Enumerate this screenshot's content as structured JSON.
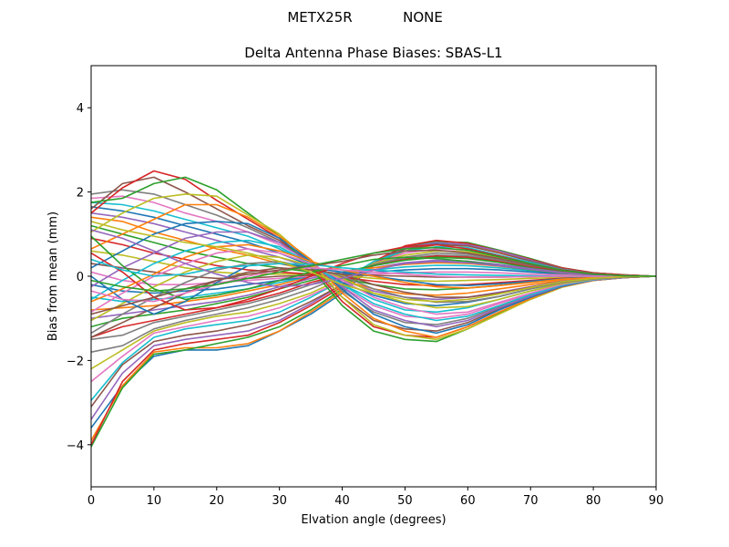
{
  "suptitle": {
    "antenna": "METX25R",
    "radome": "NONE"
  },
  "chart_data": {
    "type": "line",
    "title": "Delta Antenna Phase Biases: SBAS-L1",
    "xlabel": "Elvation angle (degrees)",
    "ylabel": "Bias from mean (mm)",
    "xlim": [
      0,
      90
    ],
    "ylim": [
      -5,
      5
    ],
    "xticks": [
      0,
      10,
      20,
      30,
      40,
      50,
      60,
      70,
      80,
      90
    ],
    "yticks": [
      -4,
      -2,
      0,
      2,
      4
    ],
    "grid": false,
    "x": [
      0,
      5,
      10,
      15,
      20,
      25,
      30,
      35,
      40,
      45,
      50,
      55,
      60,
      65,
      70,
      75,
      80,
      85,
      90
    ],
    "series_colors": [
      "#1f77b4",
      "#ff7f0e",
      "#2ca02c",
      "#d62728",
      "#9467bd",
      "#8c564b",
      "#e377c2",
      "#7f7f7f",
      "#bcbd22",
      "#17becf"
    ],
    "series": [
      {
        "color_index": 0,
        "values": [
          -3.6,
          -2.6,
          -1.9,
          -1.75,
          -1.75,
          -1.65,
          -1.3,
          -0.9,
          -0.4,
          0.25,
          0.65,
          0.78,
          0.75,
          0.6,
          0.4,
          0.2,
          0.08,
          0.03,
          0
        ]
      },
      {
        "color_index": 1,
        "values": [
          -3.9,
          -2.6,
          -1.8,
          -1.7,
          -1.7,
          -1.6,
          -1.3,
          -0.85,
          -0.35,
          0.25,
          0.6,
          0.75,
          0.72,
          0.58,
          0.38,
          0.2,
          0.08,
          0.03,
          0
        ]
      },
      {
        "color_index": 2,
        "values": [
          -4.05,
          -2.65,
          -1.85,
          -1.75,
          -1.6,
          -1.45,
          -1.2,
          -0.8,
          -0.3,
          0.3,
          0.7,
          0.82,
          0.8,
          0.62,
          0.42,
          0.2,
          0.08,
          0.03,
          0
        ]
      },
      {
        "color_index": 3,
        "values": [
          -4.0,
          -2.5,
          -1.75,
          -1.6,
          -1.5,
          -1.4,
          -1.1,
          -0.7,
          -0.25,
          0.35,
          0.72,
          0.85,
          0.78,
          0.6,
          0.4,
          0.2,
          0.08,
          0.03,
          0
        ]
      },
      {
        "color_index": 4,
        "values": [
          -3.4,
          -2.3,
          -1.65,
          -1.5,
          -1.4,
          -1.3,
          -1.05,
          -0.65,
          -0.2,
          0.3,
          0.68,
          0.8,
          0.75,
          0.6,
          0.38,
          0.18,
          0.07,
          0.02,
          0
        ]
      },
      {
        "color_index": 5,
        "values": [
          -3.1,
          -2.1,
          -1.55,
          -1.4,
          -1.3,
          -1.15,
          -0.95,
          -0.6,
          -0.2,
          0.3,
          0.65,
          0.75,
          0.72,
          0.55,
          0.36,
          0.18,
          0.07,
          0.02,
          0
        ]
      },
      {
        "color_index": 9,
        "values": [
          -2.95,
          -2.05,
          -1.45,
          -1.25,
          -1.15,
          -1.05,
          -0.85,
          -0.5,
          -0.1,
          0.35,
          0.6,
          0.7,
          0.68,
          0.5,
          0.33,
          0.16,
          0.06,
          0.02,
          0
        ]
      },
      {
        "color_index": 6,
        "values": [
          -2.5,
          -1.9,
          -1.35,
          -1.2,
          -1.05,
          -0.95,
          -0.75,
          -0.45,
          -0.1,
          0.3,
          0.55,
          0.65,
          0.62,
          0.48,
          0.3,
          0.15,
          0.06,
          0.02,
          0
        ]
      },
      {
        "color_index": 8,
        "values": [
          -2.2,
          -1.75,
          -1.3,
          -1.1,
          -0.95,
          -0.85,
          -0.65,
          -0.4,
          -0.05,
          0.3,
          0.5,
          0.6,
          0.58,
          0.45,
          0.28,
          0.14,
          0.05,
          0.02,
          0
        ]
      },
      {
        "color_index": 7,
        "values": [
          -1.8,
          -1.65,
          -1.25,
          -1.05,
          -0.9,
          -0.75,
          -0.55,
          -0.3,
          0.0,
          0.28,
          0.45,
          0.55,
          0.52,
          0.4,
          0.26,
          0.13,
          0.05,
          0.02,
          0
        ]
      },
      {
        "color_index": 7,
        "values": [
          -1.5,
          -1.4,
          -1.1,
          -0.95,
          -0.8,
          -0.65,
          -0.45,
          -0.2,
          0.05,
          0.25,
          0.42,
          0.5,
          0.48,
          0.38,
          0.24,
          0.12,
          0.05,
          0.02,
          0
        ]
      },
      {
        "color_index": 3,
        "values": [
          -1.45,
          -1.2,
          -1.05,
          -0.9,
          -0.75,
          -0.6,
          -0.4,
          -0.15,
          0.05,
          0.25,
          0.4,
          0.48,
          0.45,
          0.35,
          0.22,
          0.11,
          0.04,
          0.01,
          0
        ]
      },
      {
        "color_index": 2,
        "values": [
          -1.2,
          -1.0,
          -0.9,
          -0.8,
          -0.65,
          -0.5,
          -0.3,
          -0.1,
          0.1,
          0.25,
          0.38,
          0.45,
          0.42,
          0.33,
          0.2,
          0.1,
          0.04,
          0.01,
          0
        ]
      },
      {
        "color_index": 4,
        "values": [
          -1.0,
          -0.9,
          -0.8,
          -0.7,
          -0.6,
          -0.45,
          -0.25,
          -0.05,
          0.1,
          0.2,
          0.32,
          0.38,
          0.36,
          0.28,
          0.18,
          0.09,
          0.04,
          0.01,
          0
        ]
      },
      {
        "color_index": 1,
        "values": [
          -0.8,
          -0.75,
          -0.7,
          -0.6,
          -0.5,
          -0.35,
          -0.2,
          0.0,
          0.1,
          0.2,
          0.28,
          0.32,
          0.3,
          0.24,
          0.15,
          0.08,
          0.03,
          0.01,
          0
        ]
      },
      {
        "color_index": 9,
        "values": [
          -0.5,
          -0.6,
          -0.55,
          -0.5,
          -0.4,
          -0.3,
          -0.15,
          0.0,
          0.1,
          0.15,
          0.22,
          0.26,
          0.25,
          0.2,
          0.13,
          0.07,
          0.03,
          0.01,
          0
        ]
      },
      {
        "color_index": 0,
        "values": [
          -0.2,
          -0.35,
          -0.4,
          -0.35,
          -0.3,
          -0.2,
          -0.1,
          0.0,
          0.05,
          0.1,
          0.15,
          0.18,
          0.18,
          0.15,
          0.1,
          0.05,
          0.02,
          0.01,
          0
        ]
      },
      {
        "color_index": 6,
        "values": [
          0.1,
          -0.1,
          -0.2,
          -0.2,
          -0.15,
          -0.1,
          -0.05,
          0.0,
          0.02,
          0.05,
          0.08,
          0.1,
          0.1,
          0.08,
          0.05,
          0.03,
          0.01,
          0,
          0
        ]
      },
      {
        "color_index": 5,
        "values": [
          0.3,
          0.2,
          0.1,
          0.0,
          -0.05,
          -0.05,
          0.0,
          0.02,
          0.03,
          0.02,
          0.0,
          -0.02,
          -0.02,
          -0.02,
          -0.01,
          0,
          0,
          0,
          0
        ]
      },
      {
        "color_index": 8,
        "values": [
          0.6,
          0.5,
          0.35,
          0.2,
          0.1,
          0.05,
          0.05,
          0.05,
          0.02,
          -0.05,
          -0.1,
          -0.12,
          -0.1,
          -0.08,
          -0.05,
          -0.03,
          -0.01,
          0,
          0
        ]
      },
      {
        "color_index": 3,
        "values": [
          0.9,
          0.75,
          0.55,
          0.4,
          0.25,
          0.15,
          0.1,
          0.05,
          -0.02,
          -0.12,
          -0.2,
          -0.22,
          -0.2,
          -0.15,
          -0.1,
          -0.05,
          -0.02,
          -0.01,
          0
        ]
      },
      {
        "color_index": 2,
        "values": [
          1.2,
          1.0,
          0.8,
          0.6,
          0.45,
          0.3,
          0.2,
          0.1,
          -0.05,
          -0.2,
          -0.3,
          -0.32,
          -0.28,
          -0.22,
          -0.14,
          -0.07,
          -0.03,
          -0.01,
          0
        ]
      },
      {
        "color_index": 1,
        "values": [
          1.4,
          1.3,
          1.05,
          0.85,
          0.65,
          0.5,
          0.3,
          0.15,
          -0.1,
          -0.3,
          -0.42,
          -0.45,
          -0.4,
          -0.3,
          -0.2,
          -0.1,
          -0.04,
          -0.01,
          0
        ]
      },
      {
        "color_index": 4,
        "values": [
          1.5,
          1.4,
          1.25,
          1.05,
          0.85,
          0.65,
          0.45,
          0.2,
          -0.1,
          -0.35,
          -0.5,
          -0.55,
          -0.5,
          -0.38,
          -0.25,
          -0.12,
          -0.05,
          -0.01,
          0
        ]
      },
      {
        "color_index": 0,
        "values": [
          1.65,
          1.55,
          1.4,
          1.2,
          1.0,
          0.8,
          0.55,
          0.25,
          -0.15,
          -0.45,
          -0.65,
          -0.7,
          -0.62,
          -0.48,
          -0.3,
          -0.15,
          -0.06,
          -0.02,
          0
        ]
      },
      {
        "color_index": 9,
        "values": [
          1.75,
          1.7,
          1.55,
          1.35,
          1.15,
          0.95,
          0.65,
          0.3,
          -0.2,
          -0.55,
          -0.8,
          -0.85,
          -0.75,
          -0.55,
          -0.35,
          -0.17,
          -0.07,
          -0.02,
          0
        ]
      },
      {
        "color_index": 6,
        "values": [
          1.85,
          1.9,
          1.75,
          1.5,
          1.3,
          1.05,
          0.75,
          0.35,
          -0.25,
          -0.7,
          -0.95,
          -1.0,
          -0.9,
          -0.65,
          -0.42,
          -0.2,
          -0.08,
          -0.02,
          0
        ]
      },
      {
        "color_index": 7,
        "values": [
          1.95,
          2.05,
          1.95,
          1.7,
          1.45,
          1.15,
          0.8,
          0.35,
          -0.35,
          -0.85,
          -1.1,
          -1.15,
          -1.0,
          -0.72,
          -0.46,
          -0.22,
          -0.09,
          -0.03,
          0
        ]
      },
      {
        "color_index": 5,
        "values": [
          1.6,
          2.2,
          2.35,
          2.0,
          1.6,
          1.2,
          0.85,
          0.3,
          -0.5,
          -1.05,
          -1.25,
          -1.3,
          -1.1,
          -0.78,
          -0.5,
          -0.24,
          -0.1,
          -0.03,
          0
        ]
      },
      {
        "color_index": 3,
        "values": [
          1.5,
          2.1,
          2.5,
          2.3,
          1.8,
          1.35,
          0.9,
          0.25,
          -0.6,
          -1.2,
          -1.4,
          -1.45,
          -1.2,
          -0.85,
          -0.53,
          -0.25,
          -0.1,
          -0.03,
          0
        ]
      },
      {
        "color_index": 2,
        "values": [
          1.75,
          1.85,
          2.2,
          2.35,
          2.05,
          1.5,
          0.95,
          0.2,
          -0.7,
          -1.3,
          -1.5,
          -1.55,
          -1.25,
          -0.88,
          -0.55,
          -0.26,
          -0.1,
          -0.03,
          0
        ]
      },
      {
        "color_index": 8,
        "values": [
          1.05,
          1.5,
          1.85,
          1.95,
          1.9,
          1.45,
          1.0,
          0.35,
          -0.5,
          -1.15,
          -1.4,
          -1.5,
          -1.25,
          -0.9,
          -0.55,
          -0.26,
          -0.1,
          -0.03,
          0
        ]
      },
      {
        "color_index": 1,
        "values": [
          0.65,
          1.0,
          1.35,
          1.7,
          1.7,
          1.4,
          0.95,
          0.4,
          -0.4,
          -1.0,
          -1.3,
          -1.45,
          -1.2,
          -0.85,
          -0.53,
          -0.25,
          -0.1,
          -0.03,
          0
        ]
      },
      {
        "color_index": 0,
        "values": [
          0.2,
          0.6,
          1.0,
          1.25,
          1.3,
          1.25,
          0.9,
          0.35,
          -0.3,
          -0.9,
          -1.2,
          -1.35,
          -1.15,
          -0.8,
          -0.5,
          -0.24,
          -0.09,
          -0.03,
          0
        ]
      },
      {
        "color_index": 4,
        "values": [
          -0.25,
          0.2,
          0.55,
          0.9,
          1.05,
          1.05,
          0.8,
          0.3,
          -0.25,
          -0.8,
          -1.05,
          -1.2,
          -1.05,
          -0.75,
          -0.47,
          -0.22,
          -0.09,
          -0.03,
          0
        ]
      },
      {
        "color_index": 9,
        "values": [
          -0.55,
          -0.1,
          0.3,
          0.6,
          0.8,
          0.85,
          0.7,
          0.3,
          -0.2,
          -0.65,
          -0.9,
          -1.05,
          -0.95,
          -0.7,
          -0.44,
          -0.21,
          -0.08,
          -0.02,
          0
        ]
      },
      {
        "color_index": 6,
        "values": [
          -0.85,
          -0.4,
          0.0,
          0.3,
          0.55,
          0.65,
          0.55,
          0.3,
          -0.1,
          -0.5,
          -0.75,
          -0.9,
          -0.85,
          -0.62,
          -0.4,
          -0.19,
          -0.07,
          -0.02,
          0
        ]
      },
      {
        "color_index": 8,
        "values": [
          -1.05,
          -0.65,
          -0.25,
          0.1,
          0.35,
          0.5,
          0.45,
          0.25,
          -0.05,
          -0.4,
          -0.62,
          -0.75,
          -0.72,
          -0.55,
          -0.35,
          -0.17,
          -0.07,
          -0.02,
          0
        ]
      },
      {
        "color_index": 7,
        "values": [
          -1.35,
          -0.9,
          -0.5,
          -0.15,
          0.15,
          0.3,
          0.35,
          0.2,
          0.0,
          -0.3,
          -0.5,
          -0.62,
          -0.6,
          -0.48,
          -0.3,
          -0.15,
          -0.06,
          -0.02,
          0
        ]
      },
      {
        "color_index": 5,
        "values": [
          -1.45,
          -1.1,
          -0.75,
          -0.4,
          -0.1,
          0.1,
          0.2,
          0.15,
          0.05,
          -0.2,
          -0.38,
          -0.5,
          -0.5,
          -0.4,
          -0.26,
          -0.13,
          -0.05,
          -0.01,
          0
        ]
      },
      {
        "color_index": 0,
        "values": [
          0.0,
          -0.55,
          -0.9,
          -0.6,
          -0.15,
          0.25,
          0.3,
          0.2,
          0.1,
          0.0,
          -0.1,
          -0.2,
          -0.22,
          -0.18,
          -0.12,
          -0.06,
          -0.02,
          0,
          0
        ]
      },
      {
        "color_index": 2,
        "values": [
          0.95,
          0.25,
          -0.3,
          -0.55,
          -0.45,
          -0.3,
          -0.1,
          0.1,
          0.25,
          0.4,
          0.45,
          0.42,
          0.35,
          0.25,
          0.15,
          0.07,
          0.03,
          0.01,
          0
        ]
      },
      {
        "color_index": 3,
        "values": [
          0.55,
          0.1,
          -0.5,
          -0.8,
          -0.75,
          -0.55,
          -0.3,
          0.0,
          0.3,
          0.55,
          0.7,
          0.75,
          0.65,
          0.48,
          0.3,
          0.15,
          0.06,
          0.02,
          0
        ]
      },
      {
        "color_index": 1,
        "values": [
          -0.6,
          -0.3,
          0.05,
          0.45,
          0.7,
          0.75,
          0.6,
          0.35,
          0.15,
          0.0,
          -0.15,
          -0.25,
          -0.28,
          -0.22,
          -0.15,
          -0.07,
          -0.03,
          -0.01,
          0
        ]
      },
      {
        "color_index": 9,
        "values": [
          0.4,
          0.15,
          0.0,
          0.05,
          0.2,
          0.25,
          0.3,
          0.28,
          0.2,
          0.15,
          0.1,
          0.05,
          0.03,
          0.02,
          0.01,
          0,
          0,
          0,
          0
        ]
      },
      {
        "color_index": 4,
        "values": [
          1.1,
          0.9,
          0.6,
          0.3,
          0.05,
          -0.15,
          -0.25,
          -0.2,
          -0.05,
          0.15,
          0.3,
          0.35,
          0.32,
          0.25,
          0.16,
          0.08,
          0.03,
          0.01,
          0
        ]
      },
      {
        "color_index": 6,
        "values": [
          -0.35,
          -0.55,
          -0.6,
          -0.4,
          -0.2,
          0.0,
          0.15,
          0.2,
          0.15,
          0.1,
          0.05,
          0.0,
          -0.02,
          -0.02,
          -0.01,
          0,
          0,
          0,
          0
        ]
      },
      {
        "color_index": 8,
        "values": [
          1.3,
          1.1,
          0.95,
          0.8,
          0.7,
          0.55,
          0.35,
          0.1,
          -0.2,
          -0.4,
          -0.55,
          -0.6,
          -0.55,
          -0.42,
          -0.27,
          -0.13,
          -0.05,
          -0.01,
          0
        ]
      },
      {
        "color_index": 5,
        "values": [
          -0.9,
          -0.7,
          -0.5,
          -0.3,
          -0.1,
          0.05,
          0.15,
          0.25,
          0.35,
          0.5,
          0.6,
          0.62,
          0.55,
          0.42,
          0.27,
          0.13,
          0.05,
          0.01,
          0
        ]
      },
      {
        "color_index": 2,
        "values": [
          -0.1,
          -0.25,
          -0.35,
          -0.3,
          -0.2,
          -0.05,
          0.1,
          0.25,
          0.4,
          0.55,
          0.65,
          0.68,
          0.62,
          0.46,
          0.3,
          0.14,
          0.05,
          0.01,
          0
        ]
      }
    ]
  }
}
